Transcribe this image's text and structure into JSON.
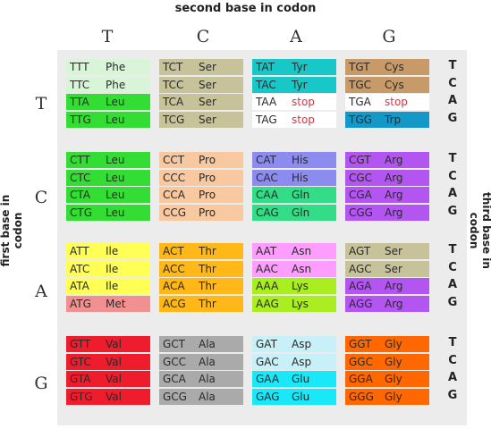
{
  "titles": {
    "top": "second base in codon",
    "left": "first base in codon",
    "right": "third base in codon"
  },
  "second_bases": [
    "T",
    "C",
    "A",
    "G"
  ],
  "first_bases": [
    "T",
    "C",
    "A",
    "G"
  ],
  "third_bases": [
    "T",
    "C",
    "A",
    "G"
  ],
  "colors": {
    "Phe": "#d8f5d8",
    "Leu": "#33dd33",
    "Ser": "#c8c29a",
    "Pro": "#f8c8a0",
    "Tyr": "#18c8c8",
    "stop": "#ffffff",
    "Cys": "#c89a68",
    "Trp": "#1498c8",
    "His": "#8c8cf0",
    "Gln": "#33dd88",
    "Arg": "#b355f0",
    "Ile": "#ffff55",
    "Met": "#f09090",
    "Thr": "#ffb818",
    "Asn": "#ff9cff",
    "Lys": "#aaee22",
    "Val": "#ee1c2c",
    "Ala": "#aaaaaa",
    "Asp": "#c8f0f8",
    "Glu": "#18e8f8",
    "Gly": "#ff6800",
    "stop_text": "#e03040"
  },
  "blocks": [
    {
      "cells": [
        [
          {
            "codon": "TTT",
            "aa": "Phe"
          },
          {
            "codon": "TTC",
            "aa": "Phe"
          },
          {
            "codon": "TTA",
            "aa": "Leu"
          },
          {
            "codon": "TTG",
            "aa": "Leu"
          }
        ],
        [
          {
            "codon": "TCT",
            "aa": "Ser"
          },
          {
            "codon": "TCC",
            "aa": "Ser"
          },
          {
            "codon": "TCA",
            "aa": "Ser"
          },
          {
            "codon": "TCG",
            "aa": "Ser"
          }
        ],
        [
          {
            "codon": "TAT",
            "aa": "Tyr"
          },
          {
            "codon": "TAC",
            "aa": "Tyr"
          },
          {
            "codon": "TAA",
            "aa": "stop"
          },
          {
            "codon": "TAG",
            "aa": "stop"
          }
        ],
        [
          {
            "codon": "TGT",
            "aa": "Cys"
          },
          {
            "codon": "TGC",
            "aa": "Cys"
          },
          {
            "codon": "TGA",
            "aa": "stop"
          },
          {
            "codon": "TGG",
            "aa": "Trp"
          }
        ]
      ]
    },
    {
      "cells": [
        [
          {
            "codon": "CTT",
            "aa": "Leu"
          },
          {
            "codon": "CTC",
            "aa": "Leu"
          },
          {
            "codon": "CTA",
            "aa": "Leu"
          },
          {
            "codon": "CTG",
            "aa": "Leu"
          }
        ],
        [
          {
            "codon": "CCT",
            "aa": "Pro"
          },
          {
            "codon": "CCC",
            "aa": "Pro"
          },
          {
            "codon": "CCA",
            "aa": "Pro"
          },
          {
            "codon": "CCG",
            "aa": "Pro"
          }
        ],
        [
          {
            "codon": "CAT",
            "aa": "His"
          },
          {
            "codon": "CAC",
            "aa": "His"
          },
          {
            "codon": "CAA",
            "aa": "Gln"
          },
          {
            "codon": "CAG",
            "aa": "Gln"
          }
        ],
        [
          {
            "codon": "CGT",
            "aa": "Arg"
          },
          {
            "codon": "CGC",
            "aa": "Arg"
          },
          {
            "codon": "CGA",
            "aa": "Arg"
          },
          {
            "codon": "CGG",
            "aa": "Arg"
          }
        ]
      ]
    },
    {
      "cells": [
        [
          {
            "codon": "ATT",
            "aa": "Ile"
          },
          {
            "codon": "ATC",
            "aa": "Ile"
          },
          {
            "codon": "ATA",
            "aa": "Ile"
          },
          {
            "codon": "ATG",
            "aa": "Met"
          }
        ],
        [
          {
            "codon": "ACT",
            "aa": "Thr"
          },
          {
            "codon": "ACC",
            "aa": "Thr"
          },
          {
            "codon": "ACA",
            "aa": "Thr"
          },
          {
            "codon": "ACG",
            "aa": "Thr"
          }
        ],
        [
          {
            "codon": "AAT",
            "aa": "Asn"
          },
          {
            "codon": "AAC",
            "aa": "Asn"
          },
          {
            "codon": "AAA",
            "aa": "Lys"
          },
          {
            "codon": "AAG",
            "aa": "Lys"
          }
        ],
        [
          {
            "codon": "AGT",
            "aa": "Ser"
          },
          {
            "codon": "AGC",
            "aa": "Ser"
          },
          {
            "codon": "AGA",
            "aa": "Arg"
          },
          {
            "codon": "AGG",
            "aa": "Arg"
          }
        ]
      ]
    },
    {
      "cells": [
        [
          {
            "codon": "GTT",
            "aa": "Val"
          },
          {
            "codon": "GTC",
            "aa": "Val"
          },
          {
            "codon": "GTA",
            "aa": "Val"
          },
          {
            "codon": "GTG",
            "aa": "Val"
          }
        ],
        [
          {
            "codon": "GCT",
            "aa": "Ala"
          },
          {
            "codon": "GCC",
            "aa": "Ala"
          },
          {
            "codon": "GCA",
            "aa": "Ala"
          },
          {
            "codon": "GCG",
            "aa": "Ala"
          }
        ],
        [
          {
            "codon": "GAT",
            "aa": "Asp"
          },
          {
            "codon": "GAC",
            "aa": "Asp"
          },
          {
            "codon": "GAA",
            "aa": "Glu"
          },
          {
            "codon": "GAG",
            "aa": "Glu"
          }
        ],
        [
          {
            "codon": "GGT",
            "aa": "Gly"
          },
          {
            "codon": "GGC",
            "aa": "Gly"
          },
          {
            "codon": "GGA",
            "aa": "Gly"
          },
          {
            "codon": "GGG",
            "aa": "Gly"
          }
        ]
      ]
    }
  ]
}
